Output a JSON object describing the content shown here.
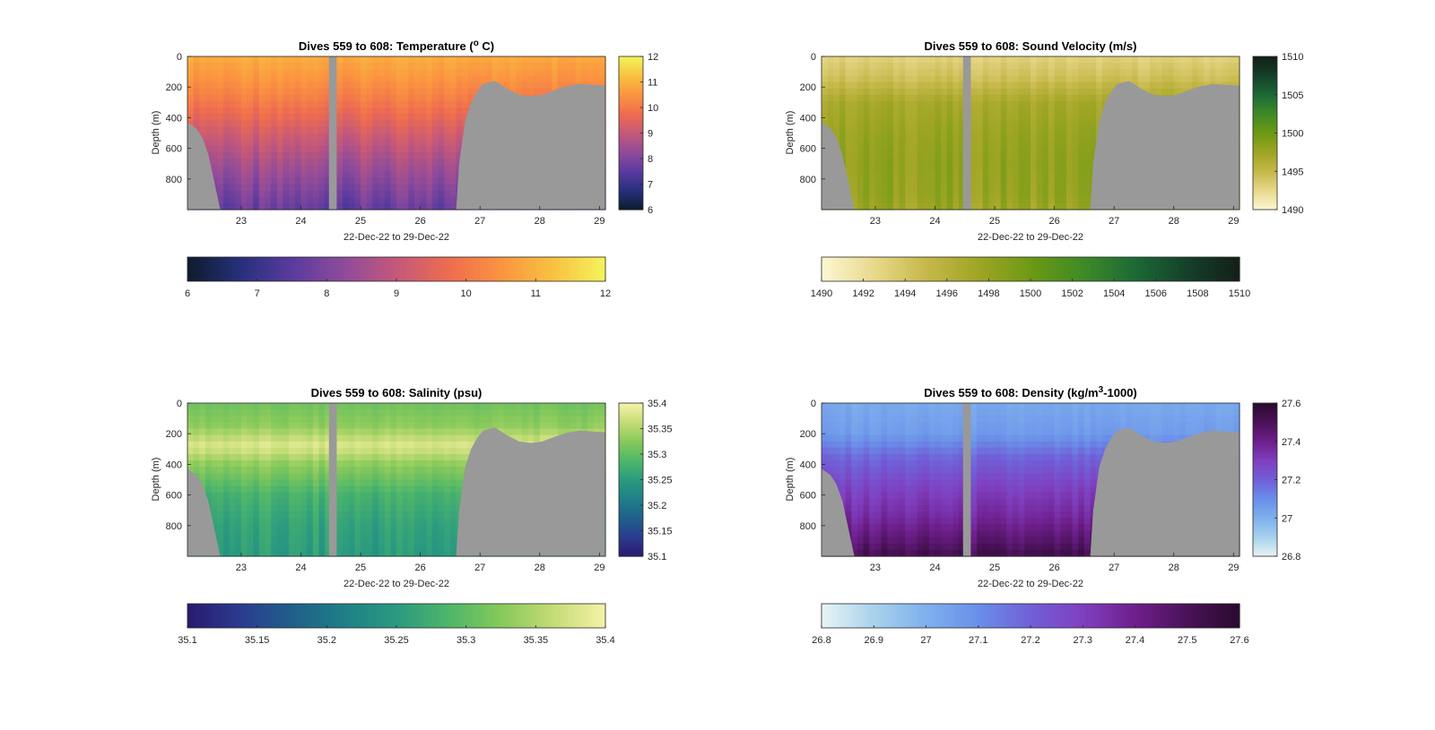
{
  "window": {
    "background": "#ffffff",
    "mask_color": "#999999"
  },
  "chart_data": [
    {
      "type": "heatmap",
      "id": "temperature",
      "title_prefix": "Dives 559 to 608: Temperature (",
      "title_sup": "o",
      "title_suffix": " C)",
      "xlabel": "22-Dec-22 to 29-Dec-22",
      "ylabel": "Depth (m)",
      "x_ticks": [
        "23",
        "24",
        "25",
        "26",
        "27",
        "28",
        "29"
      ],
      "x_tick_values": [
        23,
        24,
        25,
        26,
        27,
        28,
        29
      ],
      "xlim": [
        22.1,
        29.1
      ],
      "y_ticks": [
        "0",
        "200",
        "400",
        "600",
        "800"
      ],
      "y_tick_values": [
        0,
        200,
        400,
        600,
        800
      ],
      "ylim": [
        0,
        1000
      ],
      "y_reversed": true,
      "colormap": [
        "#0d1b2b",
        "#26307a",
        "#5a3a9f",
        "#8f4b9a",
        "#c4587a",
        "#ee6c4f",
        "#fb9440",
        "#f8c141",
        "#f4f45a"
      ],
      "clim": [
        6,
        12
      ],
      "side_colorbar_ticks": [
        "6",
        "7",
        "8",
        "9",
        "10",
        "11",
        "12"
      ],
      "side_colorbar_values": [
        6,
        7,
        8,
        9,
        10,
        11,
        12
      ],
      "bottom_colorbar_ticks": [
        "6",
        "7",
        "8",
        "9",
        "10",
        "11",
        "12"
      ],
      "bottom_colorbar_values": [
        6,
        7,
        8,
        9,
        10,
        11,
        12
      ],
      "profile": {
        "surface_value": 10.9,
        "layers": [
          {
            "depth": 0,
            "value": 10.9
          },
          {
            "depth": 150,
            "value": 10.5
          },
          {
            "depth": 300,
            "value": 10.0
          },
          {
            "depth": 500,
            "value": 9.2
          },
          {
            "depth": 700,
            "value": 8.5
          },
          {
            "depth": 900,
            "value": 7.9
          },
          {
            "depth": 1000,
            "value": 7.6
          }
        ],
        "stripe_jitter": 0.25
      }
    },
    {
      "type": "heatmap",
      "id": "sound_velocity",
      "title_prefix": "Dives 559 to 608: Sound Velocity (m/s)",
      "title_sup": "",
      "title_suffix": "",
      "xlabel": "22-Dec-22 to 29-Dec-22",
      "ylabel": "Depth (m)",
      "x_ticks": [
        "23",
        "24",
        "25",
        "26",
        "27",
        "28",
        "29"
      ],
      "x_tick_values": [
        23,
        24,
        25,
        26,
        27,
        28,
        29
      ],
      "xlim": [
        22.1,
        29.1
      ],
      "y_ticks": [
        "0",
        "200",
        "400",
        "600",
        "800"
      ],
      "y_tick_values": [
        0,
        200,
        400,
        600,
        800
      ],
      "ylim": [
        0,
        1000
      ],
      "y_reversed": true,
      "colormap": [
        "#fdf7d4",
        "#e8d98c",
        "#c6b84a",
        "#9fa524",
        "#6d9a14",
        "#3f8a26",
        "#1c6a36",
        "#15402a",
        "#131f17"
      ],
      "clim": [
        1490,
        1510
      ],
      "side_colorbar_ticks": [
        "1490",
        "1495",
        "1500",
        "1505",
        "1510"
      ],
      "side_colorbar_values": [
        1490,
        1495,
        1500,
        1505,
        1510
      ],
      "bottom_colorbar_ticks": [
        "1490",
        "1492",
        "1494",
        "1496",
        "1498",
        "1500",
        "1502",
        "1504",
        "1506",
        "1508",
        "1510"
      ],
      "bottom_colorbar_values": [
        1490,
        1492,
        1494,
        1496,
        1498,
        1500,
        1502,
        1504,
        1506,
        1508,
        1510
      ],
      "profile": {
        "layers": [
          {
            "depth": 0,
            "value": 1493.0
          },
          {
            "depth": 150,
            "value": 1494.5
          },
          {
            "depth": 300,
            "value": 1497.0
          },
          {
            "depth": 500,
            "value": 1497.8
          },
          {
            "depth": 700,
            "value": 1498.2
          },
          {
            "depth": 900,
            "value": 1498.0
          },
          {
            "depth": 1000,
            "value": 1497.6
          }
        ],
        "stripe_jitter": 0.8
      }
    },
    {
      "type": "heatmap",
      "id": "salinity",
      "title_prefix": "Dives 559 to 608: Salinity (psu)",
      "title_sup": "",
      "title_suffix": "",
      "xlabel": "22-Dec-22 to 29-Dec-22",
      "ylabel": "Depth (m)",
      "x_ticks": [
        "23",
        "24",
        "25",
        "26",
        "27",
        "28",
        "29"
      ],
      "x_tick_values": [
        23,
        24,
        25,
        26,
        27,
        28,
        29
      ],
      "xlim": [
        22.1,
        29.1
      ],
      "y_ticks": [
        "0",
        "200",
        "400",
        "600",
        "800"
      ],
      "y_tick_values": [
        0,
        200,
        400,
        600,
        800
      ],
      "ylim": [
        0,
        1000
      ],
      "y_reversed": true,
      "colormap": [
        "#2a1a6e",
        "#2b3b8f",
        "#1f5f8a",
        "#1f7f87",
        "#2a9a80",
        "#4eb66a",
        "#86c95a",
        "#c4dc76",
        "#f5f2a8"
      ],
      "clim": [
        35.1,
        35.4
      ],
      "side_colorbar_ticks": [
        "35.1",
        "35.15",
        "35.2",
        "35.25",
        "35.3",
        "35.35",
        "35.4"
      ],
      "side_colorbar_values": [
        35.1,
        35.15,
        35.2,
        35.25,
        35.3,
        35.35,
        35.4
      ],
      "bottom_colorbar_ticks": [
        "35.1",
        "35.15",
        "35.2",
        "35.25",
        "35.3",
        "35.35",
        "35.4"
      ],
      "bottom_colorbar_values": [
        35.1,
        35.15,
        35.2,
        35.25,
        35.3,
        35.35,
        35.4
      ],
      "profile": {
        "layers": [
          {
            "depth": 0,
            "value": 35.31
          },
          {
            "depth": 150,
            "value": 35.33
          },
          {
            "depth": 280,
            "value": 35.38
          },
          {
            "depth": 400,
            "value": 35.33
          },
          {
            "depth": 600,
            "value": 35.28
          },
          {
            "depth": 800,
            "value": 35.26
          },
          {
            "depth": 1000,
            "value": 35.25
          }
        ],
        "stripe_jitter": 0.012
      }
    },
    {
      "type": "heatmap",
      "id": "density",
      "title_prefix": "Dives 559 to 608: Density (kg/m",
      "title_sup": "3",
      "title_suffix": "-1000)",
      "xlabel": "22-Dec-22 to 29-Dec-22",
      "ylabel": "Depth (m)",
      "x_ticks": [
        "23",
        "24",
        "25",
        "26",
        "27",
        "28",
        "29"
      ],
      "x_tick_values": [
        23,
        24,
        25,
        26,
        27,
        28,
        29
      ],
      "xlim": [
        22.1,
        29.1
      ],
      "y_ticks": [
        "0",
        "200",
        "400",
        "600",
        "800"
      ],
      "y_tick_values": [
        0,
        200,
        400,
        600,
        800
      ],
      "ylim": [
        0,
        1000
      ],
      "y_reversed": true,
      "colormap": [
        "#e8f4f4",
        "#a9d2ec",
        "#7fb0ee",
        "#6a8fe8",
        "#7060d8",
        "#7f3fbf",
        "#6e1f8c",
        "#4a1258",
        "#2a0a2e"
      ],
      "clim": [
        26.8,
        27.6
      ],
      "side_colorbar_ticks": [
        "26.8",
        "27",
        "27.2",
        "27.4",
        "27.6"
      ],
      "side_colorbar_values": [
        26.8,
        27.0,
        27.2,
        27.4,
        27.6
      ],
      "bottom_colorbar_ticks": [
        "26.8",
        "26.9",
        "27",
        "27.1",
        "27.2",
        "27.3",
        "27.4",
        "27.5",
        "27.6"
      ],
      "bottom_colorbar_values": [
        26.8,
        26.9,
        27.0,
        27.1,
        27.2,
        27.3,
        27.4,
        27.5,
        27.6
      ],
      "profile": {
        "layers": [
          {
            "depth": 0,
            "value": 27.02
          },
          {
            "depth": 200,
            "value": 27.06
          },
          {
            "depth": 350,
            "value": 27.18
          },
          {
            "depth": 550,
            "value": 27.28
          },
          {
            "depth": 750,
            "value": 27.36
          },
          {
            "depth": 900,
            "value": 27.45
          },
          {
            "depth": 1000,
            "value": 27.52
          }
        ],
        "stripe_jitter": 0.03
      }
    }
  ],
  "shared_geometry_values": {
    "gap_x_range": [
      24.47,
      24.6
    ],
    "bottom_depth_profile": [
      {
        "x": 22.1,
        "depth": 430
      },
      {
        "x": 22.25,
        "depth": 470
      },
      {
        "x": 22.35,
        "depth": 530
      },
      {
        "x": 22.45,
        "depth": 640
      },
      {
        "x": 22.55,
        "depth": 820
      },
      {
        "x": 22.65,
        "depth": 1000
      },
      {
        "x": 26.6,
        "depth": 1000
      },
      {
        "x": 26.65,
        "depth": 700
      },
      {
        "x": 26.75,
        "depth": 420
      },
      {
        "x": 26.85,
        "depth": 300
      },
      {
        "x": 26.95,
        "depth": 230
      },
      {
        "x": 27.05,
        "depth": 180
      },
      {
        "x": 27.25,
        "depth": 160
      },
      {
        "x": 27.45,
        "depth": 210
      },
      {
        "x": 27.65,
        "depth": 250
      },
      {
        "x": 27.85,
        "depth": 260
      },
      {
        "x": 28.05,
        "depth": 250
      },
      {
        "x": 28.25,
        "depth": 220
      },
      {
        "x": 28.45,
        "depth": 195
      },
      {
        "x": 28.65,
        "depth": 180
      },
      {
        "x": 28.85,
        "depth": 185
      },
      {
        "x": 29.1,
        "depth": 190
      }
    ]
  }
}
